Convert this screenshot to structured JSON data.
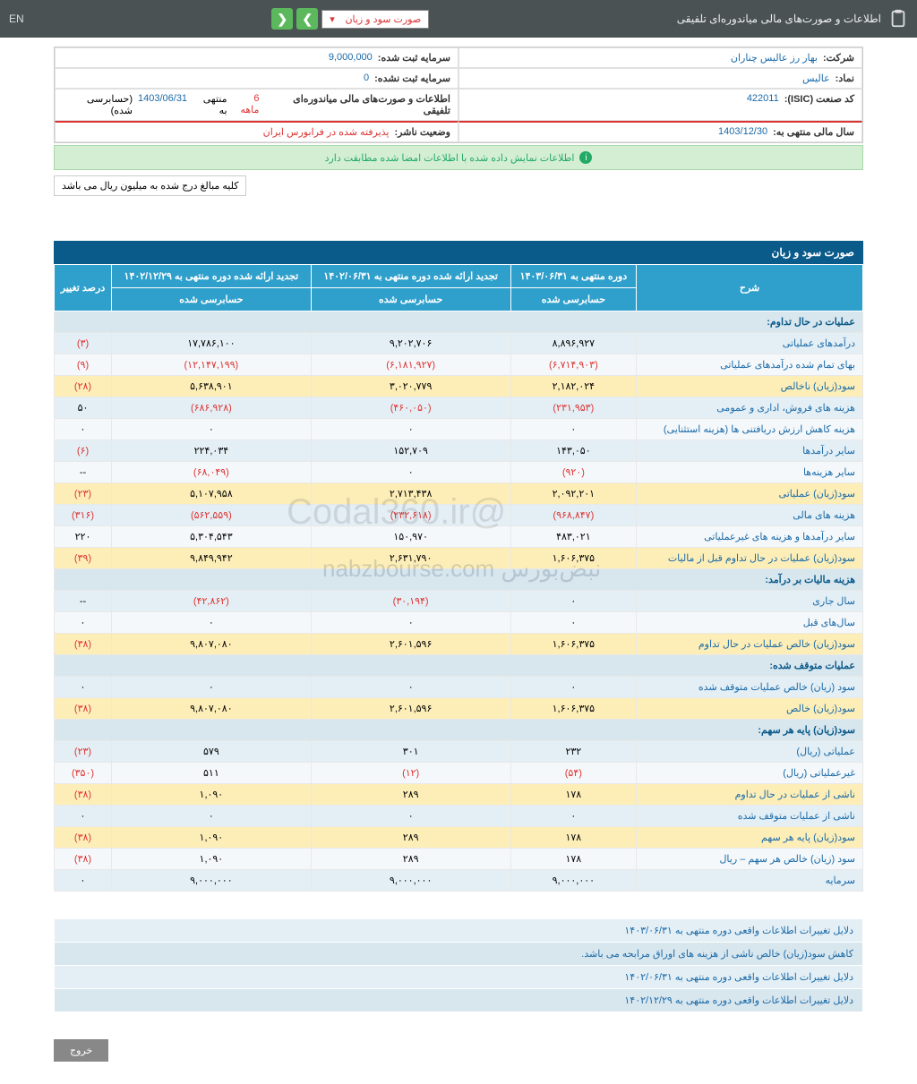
{
  "topbar": {
    "title": "اطلاعات و صورت‌های مالی میاندوره‌ای تلفیقی",
    "dropdown": "صورت سود و زیان",
    "lang": "EN"
  },
  "info": {
    "company_label": "شرکت:",
    "company_val": "بهار رز عالیس چناران",
    "capital_reg_label": "سرمایه ثبت شده:",
    "capital_reg_val": "9,000,000",
    "symbol_label": "نماد:",
    "symbol_val": "عالیس",
    "capital_unreg_label": "سرمایه ثبت نشده:",
    "capital_unreg_val": "0",
    "isic_label": "کد صنعت (ISIC):",
    "isic_val": "422011",
    "report_label": "اطلاعات و صورت‌های مالی میاندوره‌ای تلفیقی",
    "report_period": "6 ماهه",
    "report_end_pre": "منتهی به",
    "report_end": "1403/06/31",
    "report_audit": "(حسابرسی شده)",
    "year_end_label": "سال مالی منتهی به:",
    "year_end_val": "1403/12/30",
    "status_label": "وضعیت ناشر:",
    "status_val": "پذیرفته شده در فرابورس ایران"
  },
  "green_msg": "اطلاعات نمایش داده شده با اطلاعات امضا شده مطابقت دارد",
  "note": "کلیه مبالغ درج شده به میلیون ریال می باشد",
  "table_title": "صورت سود و زیان",
  "headers": {
    "desc": "شرح",
    "c1_top": "دوره منتهی به ۱۴۰۳/۰۶/۳۱",
    "c1_sub": "حسابرسی شده",
    "c2_top": "تجدید ارائه شده دوره منتهی به ۱۴۰۲/۰۶/۳۱",
    "c2_sub": "حسابرسی شده",
    "c3_top": "تجدید ارائه شده دوره منتهی به ۱۴۰۲/۱۲/۲۹",
    "c3_sub": "حسابرسی شده",
    "pct": "درصد تغییر"
  },
  "sections": {
    "s1": "عملیات در حال تداوم:",
    "s2": "هزینه مالیات بر درآمد:",
    "s3": "عملیات متوقف شده:",
    "s4": "سود(زیان) پایه هر سهم:"
  },
  "rows": [
    {
      "cls": "row-a",
      "d": "درآمدهای عملیاتی",
      "c1": "۸,۸۹۶,۹۲۷",
      "c2": "۹,۲۰۲,۷۰۶",
      "c3": "۱۷,۷۸۶,۱۰۰",
      "p": "(۳)",
      "pn": true
    },
    {
      "cls": "row-b",
      "d": "بهای تمام شده درآمدهای عملیاتی",
      "c1": "(۶,۷۱۴,۹۰۳)",
      "c1n": true,
      "c2": "(۶,۱۸۱,۹۲۷)",
      "c2n": true,
      "c3": "(۱۲,۱۴۷,۱۹۹)",
      "c3n": true,
      "p": "(۹)",
      "pn": true
    },
    {
      "cls": "row-y",
      "d": "سود(زیان) ناخالص",
      "c1": "۲,۱۸۲,۰۲۴",
      "c2": "۳,۰۲۰,۷۷۹",
      "c3": "۵,۶۳۸,۹۰۱",
      "p": "(۲۸)",
      "pn": true
    },
    {
      "cls": "row-a",
      "d": "هزینه های فروش، اداری و عمومی",
      "c1": "(۲۳۱,۹۵۳)",
      "c1n": true,
      "c2": "(۴۶۰,۰۵۰)",
      "c2n": true,
      "c3": "(۶۸۶,۹۲۸)",
      "c3n": true,
      "p": "۵۰"
    },
    {
      "cls": "row-b",
      "d": "هزینه کاهش ارزش دریافتنی ها (هزینه استثنایی)",
      "c1": "۰",
      "c2": "۰",
      "c3": "۰",
      "p": "۰"
    },
    {
      "cls": "row-a",
      "d": "سایر درآمدها",
      "c1": "۱۴۳,۰۵۰",
      "c2": "۱۵۲,۷۰۹",
      "c3": "۲۲۴,۰۳۴",
      "p": "(۶)",
      "pn": true
    },
    {
      "cls": "row-b",
      "d": "سایر هزینه‌ها",
      "c1": "(۹۲۰)",
      "c1n": true,
      "c2": "۰",
      "c3": "(۶۸,۰۴۹)",
      "c3n": true,
      "p": "--"
    },
    {
      "cls": "row-y",
      "d": "سود(زیان) عملیاتی",
      "c1": "۲,۰۹۲,۲۰۱",
      "c2": "۲,۷۱۳,۴۳۸",
      "c3": "۵,۱۰۷,۹۵۸",
      "p": "(۲۳)",
      "pn": true
    },
    {
      "cls": "row-a",
      "d": "هزینه های مالی",
      "c1": "(۹۶۸,۸۴۷)",
      "c1n": true,
      "c2": "(۲۳۲,۶۱۸)",
      "c2n": true,
      "c3": "(۵۶۲,۵۵۹)",
      "c3n": true,
      "p": "(۳۱۶)",
      "pn": true
    },
    {
      "cls": "row-b",
      "d": "سایر درآمدها و هزینه های غیرعملیاتی",
      "c1": "۴۸۳,۰۲۱",
      "c2": "۱۵۰,۹۷۰",
      "c3": "۵,۳۰۴,۵۴۳",
      "p": "۲۲۰"
    },
    {
      "cls": "row-y",
      "d": "سود(زیان) عملیات در حال تداوم قبل از مالیات",
      "c1": "۱,۶۰۶,۳۷۵",
      "c2": "۲,۶۳۱,۷۹۰",
      "c3": "۹,۸۴۹,۹۴۲",
      "p": "(۳۹)",
      "pn": true
    }
  ],
  "rows2": [
    {
      "cls": "row-a",
      "d": "سال جاری",
      "c1": "۰",
      "c2": "(۳۰,۱۹۴)",
      "c2n": true,
      "c3": "(۴۲,۸۶۲)",
      "c3n": true,
      "p": "--"
    },
    {
      "cls": "row-b",
      "d": "سال‌های قبل",
      "c1": "۰",
      "c2": "۰",
      "c3": "۰",
      "p": "۰"
    },
    {
      "cls": "row-y",
      "d": "سود(زیان) خالص عملیات در حال تداوم",
      "c1": "۱,۶۰۶,۳۷۵",
      "c2": "۲,۶۰۱,۵۹۶",
      "c3": "۹,۸۰۷,۰۸۰",
      "p": "(۳۸)",
      "pn": true
    }
  ],
  "rows3": [
    {
      "cls": "row-a",
      "d": "سود (زیان) خالص عملیات متوقف شده",
      "c1": "۰",
      "c2": "۰",
      "c3": "۰",
      "p": "۰"
    },
    {
      "cls": "row-y",
      "d": "سود(زیان) خالص",
      "c1": "۱,۶۰۶,۳۷۵",
      "c2": "۲,۶۰۱,۵۹۶",
      "c3": "۹,۸۰۷,۰۸۰",
      "p": "(۳۸)",
      "pn": true
    }
  ],
  "rows4": [
    {
      "cls": "row-a",
      "d": "عملیاتی (ریال)",
      "c1": "۲۳۲",
      "c2": "۳۰۱",
      "c3": "۵۷۹",
      "p": "(۲۳)",
      "pn": true
    },
    {
      "cls": "row-b",
      "d": "غیرعملیاتی (ریال)",
      "c1": "(۵۴)",
      "c1n": true,
      "c2": "(۱۲)",
      "c2n": true,
      "c3": "۵۱۱",
      "p": "(۳۵۰)",
      "pn": true
    },
    {
      "cls": "row-y",
      "d": "ناشی از عملیات در حال تداوم",
      "c1": "۱۷۸",
      "c2": "۲۸۹",
      "c3": "۱,۰۹۰",
      "p": "(۳۸)",
      "pn": true
    },
    {
      "cls": "row-a",
      "d": "ناشی از عملیات متوقف شده",
      "c1": "۰",
      "c2": "۰",
      "c3": "۰",
      "p": "۰"
    },
    {
      "cls": "row-y",
      "d": "سود(زیان) پایه هر سهم",
      "c1": "۱۷۸",
      "c2": "۲۸۹",
      "c3": "۱,۰۹۰",
      "p": "(۳۸)",
      "pn": true
    },
    {
      "cls": "row-b",
      "d": "سود (زیان) خالص هر سهم – ریال",
      "c1": "۱۷۸",
      "c2": "۲۸۹",
      "c3": "۱,۰۹۰",
      "p": "(۳۸)",
      "pn": true
    },
    {
      "cls": "row-a",
      "d": "سرمایه",
      "c1": "۹,۰۰۰,۰۰۰",
      "c2": "۹,۰۰۰,۰۰۰",
      "c3": "۹,۰۰۰,۰۰۰",
      "p": "۰"
    }
  ],
  "notes": [
    "دلایل تغییرات اطلاعات واقعی دوره منتهی به ۱۴۰۳/۰۶/۳۱",
    "کاهش سود(زیان) خالص ناشی از هزینه های اوراق مرابحه می باشد.",
    "دلایل تغییرات اطلاعات واقعی دوره منتهی به ۱۴۰۲/۰۶/۳۱",
    "دلایل تغییرات اطلاعات واقعی دوره منتهی به ۱۴۰۲/۱۲/۲۹"
  ],
  "exit": "خروج"
}
